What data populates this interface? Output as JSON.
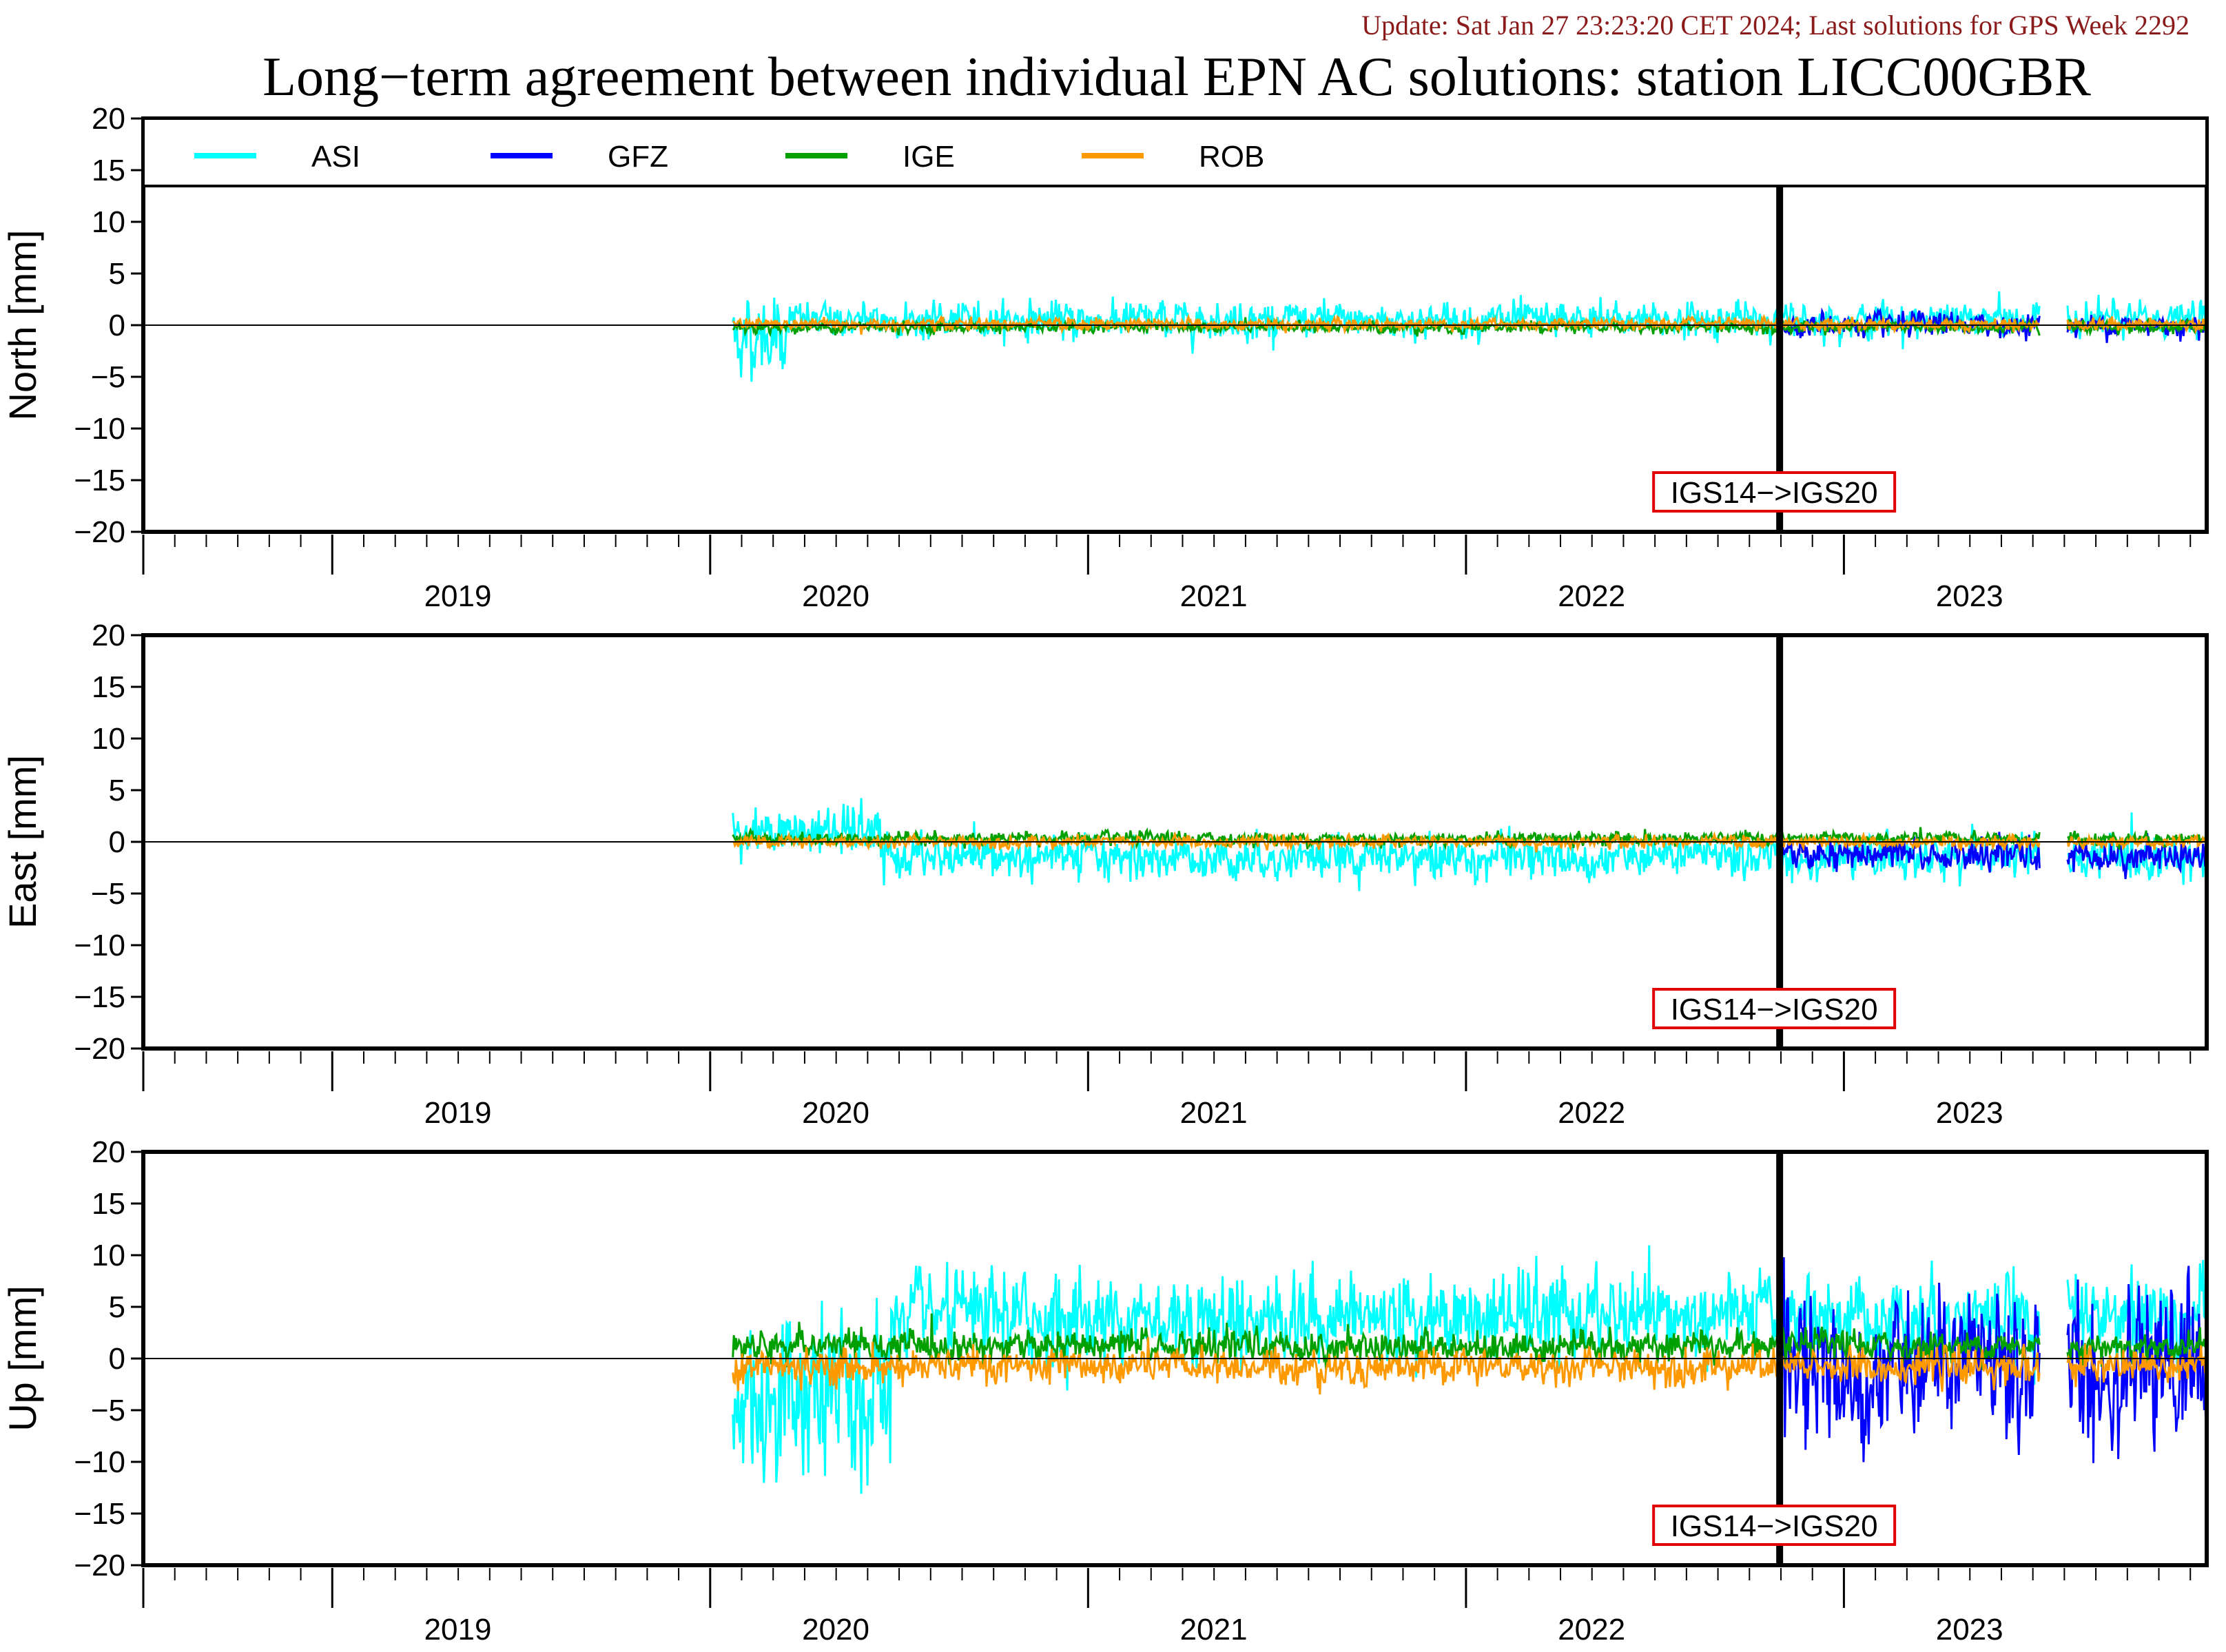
{
  "header": {
    "update_text": "Update: Sat Jan 27 23:23:20 CET 2024; Last solutions for GPS Week 2292",
    "title": "Long−term agreement between individual EPN AC solutions: station LICC00GBR"
  },
  "colors": {
    "ASI": "#00ffff",
    "GFZ": "#0000ff",
    "IGE": "#00a000",
    "ROB": "#ff9900",
    "update_text": "#8b1a1a",
    "marker_box": "#e00000"
  },
  "chart_data": [
    {
      "type": "line",
      "panel": "north",
      "ylabel": "North [mm]",
      "ylim": [
        -20,
        20
      ],
      "yticks": [
        20,
        15,
        10,
        5,
        0,
        -5,
        -10,
        -15,
        -20
      ],
      "xlim": [
        2018.5,
        2023.96
      ],
      "xtick_labels": [
        "2019",
        "2020",
        "2021",
        "2022",
        "2023"
      ],
      "grid": false,
      "legend_position": "top (inside first panel)",
      "series": [
        {
          "name": "ASI",
          "start": 2020.06,
          "end": 2023.96,
          "gap": [
            2023.52,
            2023.59
          ],
          "mean": 0.5,
          "noise": 0.9,
          "early_mean": -1.0,
          "early_until": 2020.2,
          "early_noise": 2.0
        },
        {
          "name": "GFZ",
          "start": 2022.83,
          "end": 2023.96,
          "gap": [
            2023.52,
            2023.59
          ],
          "mean": 0.0,
          "noise": 0.6
        },
        {
          "name": "IGE",
          "start": 2020.06,
          "end": 2023.96,
          "gap": [
            2023.52,
            2023.59
          ],
          "mean": -0.2,
          "noise": 0.3
        },
        {
          "name": "ROB",
          "start": 2020.06,
          "end": 2023.96,
          "gap": [
            2023.52,
            2023.59
          ],
          "mean": 0.1,
          "noise": 0.3
        }
      ],
      "annotations": [
        {
          "text": "IGS14−>IGS20",
          "x": 2022.83
        }
      ]
    },
    {
      "type": "line",
      "panel": "east",
      "ylabel": "East [mm]",
      "ylim": [
        -20,
        20
      ],
      "yticks": [
        20,
        15,
        10,
        5,
        0,
        -5,
        -10,
        -15,
        -20
      ],
      "xlim": [
        2018.5,
        2023.96
      ],
      "xtick_labels": [
        "2019",
        "2020",
        "2021",
        "2022",
        "2023"
      ],
      "grid": false,
      "series": [
        {
          "name": "ASI",
          "start": 2020.06,
          "end": 2023.96,
          "gap": [
            2023.52,
            2023.59
          ],
          "mean": -1.5,
          "noise": 1.1,
          "early_mean": 1.0,
          "early_until": 2020.45,
          "early_noise": 1.2
        },
        {
          "name": "GFZ",
          "start": 2022.83,
          "end": 2023.96,
          "gap": [
            2023.52,
            2023.59
          ],
          "mean": -1.3,
          "noise": 0.8
        },
        {
          "name": "IGE",
          "start": 2020.06,
          "end": 2023.96,
          "gap": [
            2023.52,
            2023.59
          ],
          "mean": 0.3,
          "noise": 0.35
        },
        {
          "name": "ROB",
          "start": 2020.06,
          "end": 2023.96,
          "gap": [
            2023.52,
            2023.59
          ],
          "mean": 0.0,
          "noise": 0.3
        }
      ],
      "annotations": [
        {
          "text": "IGS14−>IGS20",
          "x": 2022.83
        }
      ]
    },
    {
      "type": "line",
      "panel": "up",
      "ylabel": "Up [mm]",
      "ylim": [
        -20,
        20
      ],
      "yticks": [
        20,
        15,
        10,
        5,
        0,
        -5,
        -10,
        -15,
        -20
      ],
      "xlim": [
        2018.5,
        2023.96
      ],
      "xtick_labels": [
        "2019",
        "2020",
        "2021",
        "2022",
        "2023"
      ],
      "grid": false,
      "series": [
        {
          "name": "ASI",
          "start": 2020.06,
          "end": 2023.96,
          "gap": [
            2023.52,
            2023.59
          ],
          "mean": 4.0,
          "noise": 2.2,
          "early_mean": -4.0,
          "early_until": 2020.48,
          "early_noise": 4.5
        },
        {
          "name": "GFZ",
          "start": 2022.83,
          "end": 2023.96,
          "gap": [
            2023.52,
            2023.59
          ],
          "mean": -1.0,
          "noise": 4.0
        },
        {
          "name": "IGE",
          "start": 2020.06,
          "end": 2023.96,
          "gap": [
            2023.52,
            2023.59
          ],
          "mean": 1.2,
          "noise": 0.8
        },
        {
          "name": "ROB",
          "start": 2020.06,
          "end": 2023.96,
          "gap": [
            2023.52,
            2023.59
          ],
          "mean": -0.8,
          "noise": 0.9
        }
      ],
      "annotations": [
        {
          "text": "IGS14−>IGS20",
          "x": 2022.83
        }
      ]
    }
  ],
  "legend": [
    {
      "name": "ASI",
      "color": "#00ffff"
    },
    {
      "name": "GFZ",
      "color": "#0000ff"
    },
    {
      "name": "IGE",
      "color": "#00a000"
    },
    {
      "name": "ROB",
      "color": "#ff9900"
    }
  ]
}
